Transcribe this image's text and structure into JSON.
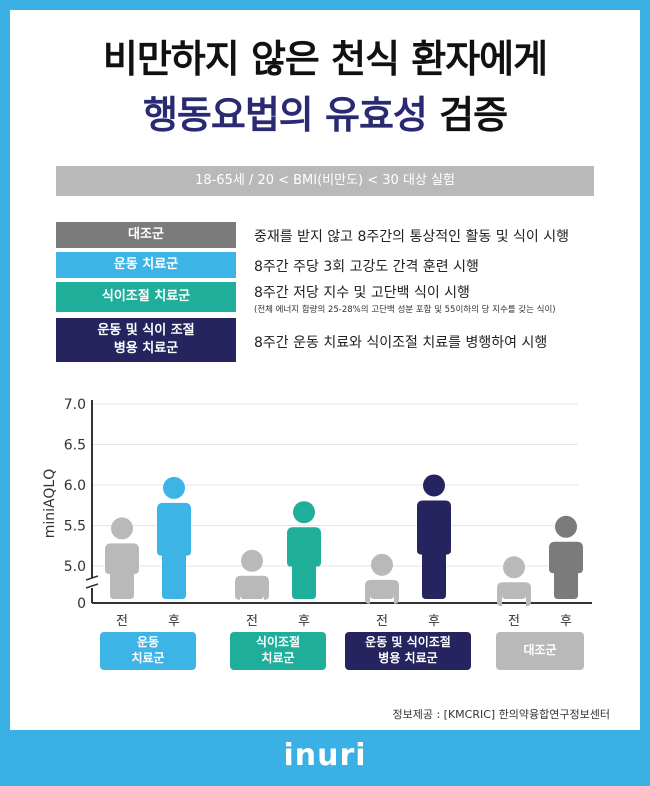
{
  "title": {
    "line1": "비만하지 않은 천식 환자에게",
    "line2_highlight": "행동요법의 유효성",
    "line2_rest": "검증"
  },
  "subtitle": "18-65세 / 20 < BMI(비만도) < 30 대상 실험",
  "legend": [
    {
      "label": "대조군",
      "desc": "중재를 받지 않고 8주간의 통상적인 활동 및 식이 시행",
      "color": "#7b7b7b"
    },
    {
      "label": "운동 치료군",
      "desc": "8주간 주당 3회 고강도 간격 훈련 시행",
      "color": "#3cb4e6"
    },
    {
      "label": "식이조절 치료군",
      "desc": "8주간 저당 지수 및 고단백 식이 시행",
      "note": "(전체 에너지 함량의 25-28%의 고단백 성분 포함 및 55이하의 당 지수를 갖는 식이)",
      "color": "#1fae9a"
    },
    {
      "label": "운동 및 식이 조절\n병용 치료군",
      "desc": "8주간 운동 치료와 식이조절 치료를 병행하여 시행",
      "color": "#25245e"
    }
  ],
  "chart_data": {
    "type": "bar",
    "ylabel": "miniAQLQ",
    "yticks": [
      "7.0",
      "6.5",
      "6.0",
      "5.5",
      "5.0",
      "0"
    ],
    "ylim": [
      4.75,
      7.0
    ],
    "axis_break": true,
    "categories": [
      "운동\n치료군",
      "식이조절\n치료군",
      "운동 및 식이조절\n병용 치료군",
      "대조군"
    ],
    "series": [
      {
        "name": "전",
        "values": [
          5.6,
          5.2,
          5.15,
          5.12
        ]
      },
      {
        "name": "후",
        "values": [
          6.1,
          5.8,
          6.13,
          5.62
        ]
      }
    ],
    "before_color": "#b9b9b9",
    "after_colors": [
      "#3cb4e6",
      "#1fae9a",
      "#25245e",
      "#7b7b7b"
    ],
    "group_label_colors": [
      "#3cb4e6",
      "#1fae9a",
      "#25245e",
      "#b9b9b9"
    ]
  },
  "source": "정보제공 : [KMCRIC] 한의약융합연구정보센터",
  "brand": "inuri"
}
